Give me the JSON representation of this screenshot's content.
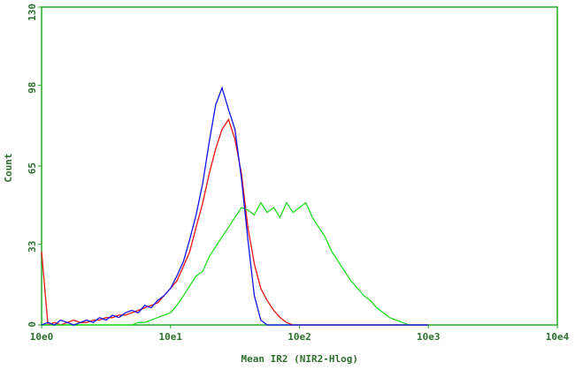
{
  "chart_data": {
    "type": "line",
    "xlabel": "Mean IR2 (NIR2-Hlog)",
    "ylabel": "Count",
    "log_x": true,
    "x": [
      1,
      1.12,
      1.26,
      1.41,
      1.58,
      1.78,
      2,
      2.24,
      2.51,
      2.82,
      3.16,
      3.55,
      3.98,
      4.47,
      5.01,
      5.62,
      6.31,
      7.08,
      7.94,
      8.91,
      10,
      11.2,
      12.6,
      14.1,
      15.8,
      17.8,
      20,
      22.4,
      25.1,
      28.2,
      31.6,
      35.5,
      39.8,
      44.7,
      50.1,
      56.2,
      63.1,
      70.8,
      79.4,
      89.1,
      100,
      112,
      126,
      141,
      158,
      178,
      200,
      224,
      251,
      282,
      316,
      355,
      398,
      447,
      501,
      562,
      631,
      708,
      794,
      891,
      1000
    ],
    "series": [
      {
        "color": "#ee1111",
        "values": [
          30,
          0,
          1,
          0,
          1,
          2,
          1,
          1,
          2,
          2,
          3,
          3,
          4,
          4,
          5,
          6,
          7,
          8,
          9,
          12,
          15,
          18,
          24,
          30,
          40,
          50,
          62,
          72,
          80,
          84,
          76,
          62,
          40,
          25,
          15,
          10,
          6,
          3,
          1,
          0,
          0,
          0,
          0,
          0,
          0,
          0,
          0,
          0,
          0,
          0,
          0,
          0,
          0,
          0,
          0,
          0,
          0,
          0,
          0,
          0,
          0
        ]
      },
      {
        "color": "#22dd22",
        "values": [
          0,
          0,
          0,
          0,
          0,
          0,
          0,
          0,
          0,
          0,
          0,
          0,
          0,
          0,
          0,
          1,
          1,
          2,
          3,
          4,
          5,
          8,
          12,
          16,
          20,
          22,
          28,
          32,
          36,
          40,
          44,
          48,
          47,
          45,
          50,
          46,
          48,
          44,
          50,
          46,
          48,
          50,
          44,
          40,
          36,
          30,
          26,
          22,
          18,
          15,
          12,
          10,
          7,
          5,
          3,
          2,
          1,
          0,
          0,
          0,
          0
        ]
      },
      {
        "color": "#1111ee",
        "values": [
          0,
          1,
          0,
          2,
          1,
          0,
          1,
          2,
          1,
          3,
          2,
          4,
          3,
          5,
          6,
          5,
          8,
          7,
          10,
          12,
          15,
          20,
          26,
          35,
          45,
          58,
          75,
          90,
          97,
          88,
          80,
          60,
          35,
          12,
          2,
          0,
          0,
          0,
          0,
          0,
          0,
          0,
          0,
          0,
          0,
          0,
          0,
          0,
          0,
          0,
          0,
          0,
          0,
          0,
          0,
          0,
          0,
          0,
          0,
          0,
          0
        ]
      }
    ],
    "xlim": [
      1,
      10000
    ],
    "xticks": [
      {
        "value": 1,
        "label": "10e0"
      },
      {
        "value": 10,
        "label": "10e1"
      },
      {
        "value": 100,
        "label": "10e2"
      },
      {
        "value": 1000,
        "label": "10e3"
      },
      {
        "value": 10000,
        "label": "10e4"
      }
    ],
    "ylim": [
      0,
      130
    ],
    "yticks": [
      0,
      33,
      65,
      98,
      130
    ],
    "frame_color": "#22aa22"
  }
}
